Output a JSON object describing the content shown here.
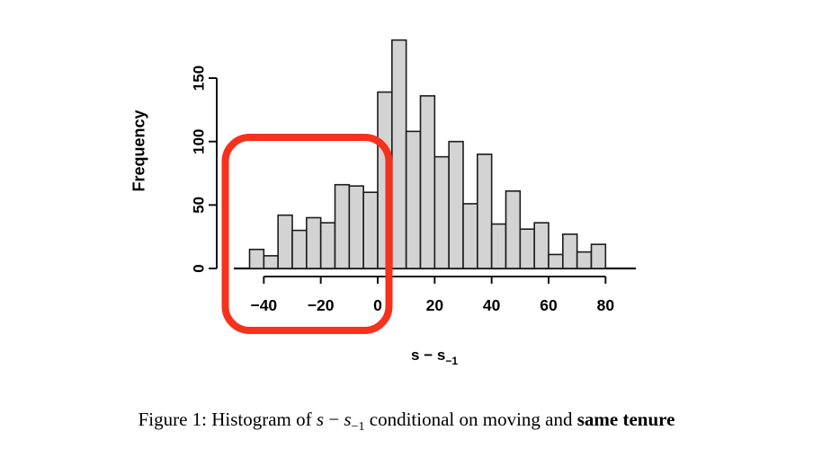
{
  "figure": {
    "ylabel": "Frequency",
    "xlabel": {
      "s": "s",
      "minus": " − ",
      "sub": "−1"
    },
    "caption": {
      "prefix": "Figure 1: Histogram of ",
      "math_s": "s",
      "math_minus": " − ",
      "math_sub": "−1",
      "middle": " conditional on moving and ",
      "emphasis": "same tenure"
    }
  },
  "chart_data": {
    "type": "bar",
    "subtype": "histogram",
    "title": "",
    "xlabel": "s − s−1",
    "ylabel": "Frequency",
    "bin_start": -45,
    "bin_width": 5,
    "frequencies": [
      15,
      10,
      42,
      30,
      40,
      36,
      66,
      65,
      60,
      139,
      180,
      108,
      136,
      88,
      100,
      51,
      90,
      35,
      61,
      31,
      36,
      11,
      27,
      13,
      19
    ],
    "x_ticks": [
      -40,
      -20,
      0,
      20,
      40,
      60,
      80
    ],
    "y_ticks": [
      0,
      50,
      100,
      150
    ],
    "xlim": [
      -51,
      91
    ],
    "ylim": [
      0,
      185
    ],
    "grid": false,
    "legend": null,
    "bar_fill": "#d3d3d3",
    "bar_border": "#1c1c1c",
    "axis_color": "#111111",
    "annotation": {
      "shape": "rounded-rectangle",
      "stroke_color": "#f6311c",
      "stroke_width_px": 8,
      "highlights": "negative region: bars from −50 to ~0 and x-axis labels −40, −20, 0"
    }
  }
}
